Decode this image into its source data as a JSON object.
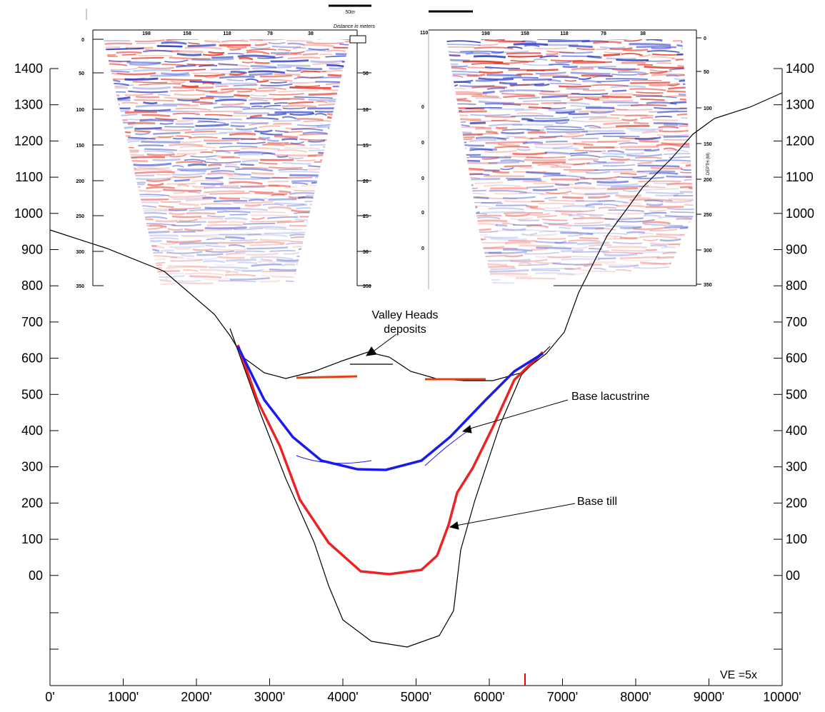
{
  "axes": {
    "left_labels": [
      "1400",
      "1300",
      "1200",
      "1100",
      "1000",
      "900",
      "800",
      "700",
      "600",
      "500",
      "400",
      "300",
      "200",
      "100",
      "00"
    ],
    "right_labels": [
      "1400",
      "1300",
      "1200",
      "1100",
      "1000",
      "900",
      "800",
      "700",
      "600",
      "500",
      "400",
      "300",
      "200",
      "100",
      "00"
    ],
    "bottom_labels": [
      "0'",
      "1000'",
      "2000'",
      "3000'",
      "4000'",
      "5000'",
      "6000'",
      "7000'",
      "8000'",
      "9000'",
      "10000'"
    ]
  },
  "annotations": {
    "valley_heads": "Valley Heads",
    "deposits": "deposits",
    "base_lacustrine": "Base lacustrine",
    "base_till": "Base till",
    "ve": "VE =5x"
  },
  "seismic_left": {
    "scale_label": "50m",
    "axis_title": "Distance in meters",
    "distance_labels": [
      "198",
      "158",
      "118",
      "78",
      "38"
    ],
    "depth_labels": [
      "0",
      "50",
      "100",
      "150",
      "200",
      "250",
      "300",
      "350"
    ],
    "depth_m_labels": [
      "50",
      "10",
      "15",
      "20",
      "25",
      "30",
      "350"
    ]
  },
  "seismic_right": {
    "corner_label": "110",
    "distance_labels": [
      "198",
      "158",
      "118",
      "78",
      "38"
    ],
    "depth_labels": [
      "0",
      "50",
      "100",
      "150",
      "200",
      "250",
      "300",
      "350"
    ],
    "side_labels": [
      "0",
      "0",
      "0",
      "0",
      "0"
    ],
    "depth_title": "DEPTH (M)"
  }
}
